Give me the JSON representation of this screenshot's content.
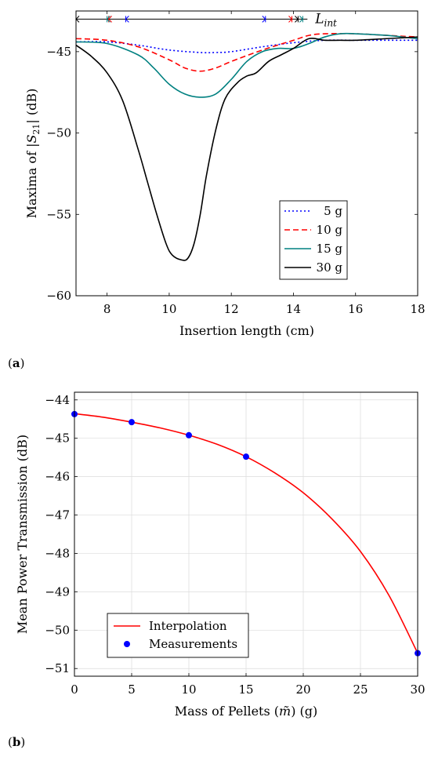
{
  "chart_data": [
    {
      "panel_label": "a",
      "type": "line",
      "xlabel": "Insertion length (cm)",
      "ylabel_prefix": "Maxima of |",
      "ylabel_S": "S",
      "ylabel_sub": "21",
      "ylabel_suffix": "| (dB)",
      "xlim": [
        7,
        18
      ],
      "ylim": [
        -60,
        -42.5
      ],
      "xticks": [
        8,
        10,
        12,
        14,
        16,
        18
      ],
      "yticks": [
        -60,
        -55,
        -50,
        -45
      ],
      "ytick_labels": [
        "−60",
        "−55",
        "−50",
        "−45"
      ],
      "grid": false,
      "legend_position": "lower-right",
      "annotation": {
        "text": "L",
        "sub": "int",
        "y": -43
      },
      "series": [
        {
          "name": "5 g",
          "color": "#0000ff",
          "dash": "dotted",
          "x": [
            7,
            8,
            9,
            10,
            11,
            11.5,
            12,
            13,
            14,
            15,
            16,
            17,
            18
          ],
          "y": [
            -44.4,
            -44.4,
            -44.6,
            -44.9,
            -45.05,
            -45.05,
            -45.0,
            -44.7,
            -44.45,
            -44.3,
            -44.3,
            -44.3,
            -44.3
          ],
          "marker_start": 8.6,
          "marker_end": 13.1
        },
        {
          "name": "10 g",
          "color": "#ff0000",
          "dash": "dashed",
          "x": [
            7,
            8,
            9,
            10,
            10.5,
            11,
            11.5,
            12,
            13,
            14,
            14.5,
            15,
            16,
            17,
            18
          ],
          "y": [
            -44.2,
            -44.3,
            -44.7,
            -45.5,
            -46.0,
            -46.2,
            -46.0,
            -45.6,
            -44.9,
            -44.3,
            -44.0,
            -43.9,
            -43.9,
            -44.0,
            -44.1
          ],
          "marker_start": 8.05,
          "marker_end": 13.95
        },
        {
          "name": "15 g",
          "color": "#008080",
          "dash": "solid",
          "x": [
            7,
            8,
            9,
            9.5,
            10,
            10.5,
            11,
            11.5,
            12,
            12.5,
            13,
            13.5,
            14,
            14.5,
            15,
            15.5,
            16,
            17,
            18
          ],
          "y": [
            -44.4,
            -44.5,
            -45.2,
            -46.0,
            -47.0,
            -47.6,
            -47.8,
            -47.6,
            -46.7,
            -45.6,
            -45.0,
            -44.8,
            -44.8,
            -44.5,
            -44.1,
            -43.9,
            -43.9,
            -44.0,
            -44.2
          ],
          "marker_start": 8.0,
          "marker_end": 14.3
        },
        {
          "name": "30 g",
          "color": "#000000",
          "dash": "solid",
          "x": [
            7,
            7.5,
            8,
            8.5,
            9,
            9.3,
            9.6,
            9.9,
            10.1,
            10.4,
            10.6,
            10.8,
            11.0,
            11.2,
            11.5,
            11.8,
            12.2,
            12.5,
            12.8,
            13.2,
            13.6,
            14.0,
            14.5,
            15.0,
            15.5,
            16.0,
            17.0,
            18.0
          ],
          "y": [
            -44.6,
            -45.3,
            -46.3,
            -48.0,
            -51.0,
            -53.0,
            -55.0,
            -56.8,
            -57.5,
            -57.8,
            -57.7,
            -56.8,
            -55.0,
            -52.6,
            -49.8,
            -47.9,
            -46.9,
            -46.5,
            -46.3,
            -45.6,
            -45.2,
            -44.8,
            -44.2,
            -44.3,
            -44.3,
            -44.3,
            -44.2,
            -44.1
          ],
          "marker_start": 7.0,
          "marker_end": 14.15
        }
      ]
    },
    {
      "panel_label": "b",
      "type": "line",
      "xlabel_prefix": "Mass of Pellets (",
      "xlabel_sym": "m̃",
      "xlabel_suffix": ") (g)",
      "ylabel": "Mean Power Transmission (dB)",
      "xlim": [
        0,
        30
      ],
      "ylim": [
        -51.2,
        -43.8
      ],
      "xticks": [
        0,
        5,
        10,
        15,
        20,
        25,
        30
      ],
      "yticks": [
        -51,
        -50,
        -49,
        -48,
        -47,
        -46,
        -45,
        -44
      ],
      "ytick_labels": [
        "−51",
        "−50",
        "−49",
        "−48",
        "−47",
        "−46",
        "−45",
        "−44"
      ],
      "grid": true,
      "legend_position": "lower-left",
      "series": [
        {
          "name": "Interpolation",
          "color": "#ff0000",
          "kind": "line",
          "x": [
            0,
            2.5,
            5,
            7.5,
            10,
            12.5,
            15,
            17.5,
            20,
            22.5,
            25,
            27.5,
            30
          ],
          "y": [
            -44.36,
            -44.45,
            -44.58,
            -44.73,
            -44.92,
            -45.16,
            -45.48,
            -45.9,
            -46.42,
            -47.1,
            -47.95,
            -49.1,
            -50.6
          ]
        },
        {
          "name": "Measurements",
          "color": "#0000ff",
          "kind": "scatter",
          "x": [
            0,
            5,
            10,
            15,
            30
          ],
          "y": [
            -44.37,
            -44.58,
            -44.92,
            -45.48,
            -50.6
          ]
        }
      ]
    }
  ]
}
